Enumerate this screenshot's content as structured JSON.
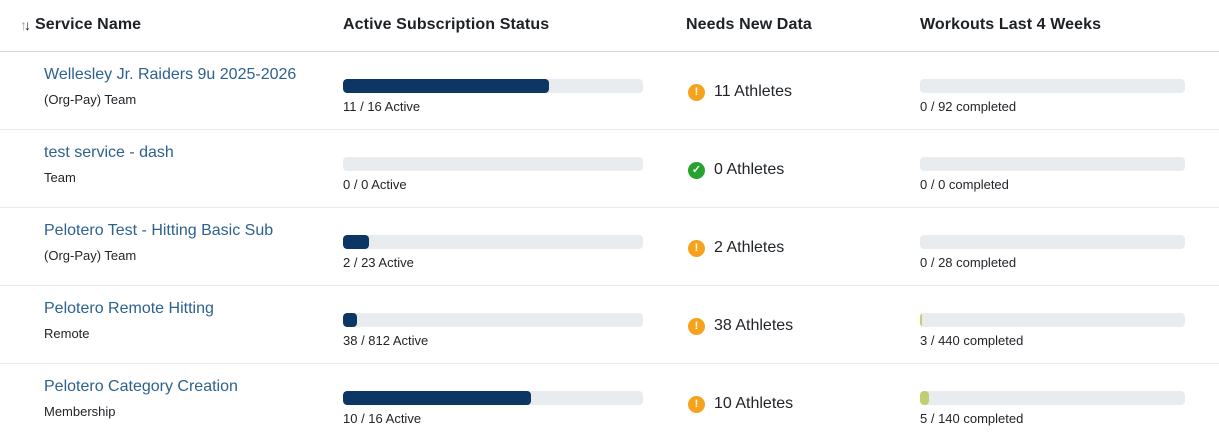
{
  "table": {
    "sort_icon": {
      "up": "↑",
      "down": "↓"
    },
    "columns": [
      {
        "label": "Service Name"
      },
      {
        "label": "Active Subscription Status"
      },
      {
        "label": "Needs New Data"
      },
      {
        "label": "Workouts Last 4 Weeks"
      }
    ],
    "rows": [
      {
        "name": "Wellesley Jr. Raiders 9u 2025-2026",
        "type": "(Org-Pay) Team",
        "subscription": {
          "active": 11,
          "total": 16,
          "label": "11 / 16 Active",
          "percent": 68.75,
          "color": "#0c3765"
        },
        "needs_new_data": {
          "count": 11,
          "label": "11 Athletes",
          "status": "warning",
          "glyph": "!"
        },
        "workouts": {
          "completed": 0,
          "total": 92,
          "label": "0 / 92 completed",
          "percent": 0,
          "color": "#c3ce72"
        }
      },
      {
        "name": "test service - dash",
        "type": "Team",
        "subscription": {
          "active": 0,
          "total": 0,
          "label": "0 / 0 Active",
          "percent": 0,
          "color": "#0c3765"
        },
        "needs_new_data": {
          "count": 0,
          "label": "0 Athletes",
          "status": "success",
          "glyph": "✓"
        },
        "workouts": {
          "completed": 0,
          "total": 0,
          "label": "0 / 0 completed",
          "percent": 0,
          "color": "#c3ce72"
        }
      },
      {
        "name": "Pelotero Test - Hitting Basic Sub",
        "type": "(Org-Pay) Team",
        "subscription": {
          "active": 2,
          "total": 23,
          "label": "2 / 23 Active",
          "percent": 8.7,
          "color": "#0c3765"
        },
        "needs_new_data": {
          "count": 2,
          "label": "2 Athletes",
          "status": "warning",
          "glyph": "!"
        },
        "workouts": {
          "completed": 0,
          "total": 28,
          "label": "0 / 28 completed",
          "percent": 0,
          "color": "#c3ce72"
        }
      },
      {
        "name": "Pelotero Remote Hitting",
        "type": "Remote",
        "subscription": {
          "active": 38,
          "total": 812,
          "label": "38 / 812 Active",
          "percent": 4.68,
          "color": "#0c3765"
        },
        "needs_new_data": {
          "count": 38,
          "label": "38 Athletes",
          "status": "warning",
          "glyph": "!"
        },
        "workouts": {
          "completed": 3,
          "total": 440,
          "label": "3 / 440 completed",
          "percent": 0.68,
          "color": "#c3ce72"
        }
      },
      {
        "name": "Pelotero Category Creation",
        "type": "Membership",
        "subscription": {
          "active": 10,
          "total": 16,
          "label": "10 / 16 Active",
          "percent": 62.5,
          "color": "#0c3765"
        },
        "needs_new_data": {
          "count": 10,
          "label": "10 Athletes",
          "status": "warning",
          "glyph": "!"
        },
        "workouts": {
          "completed": 5,
          "total": 140,
          "label": "5 / 140 completed",
          "percent": 3.57,
          "color": "#c3ce72"
        }
      }
    ]
  },
  "colors": {
    "subscription_bar": "#0c3765",
    "workouts_bar": "#c3ce72",
    "bar_track": "#e9ecef",
    "warning": "#f5a31d",
    "success": "#28a22f",
    "link": "#2d618f"
  }
}
